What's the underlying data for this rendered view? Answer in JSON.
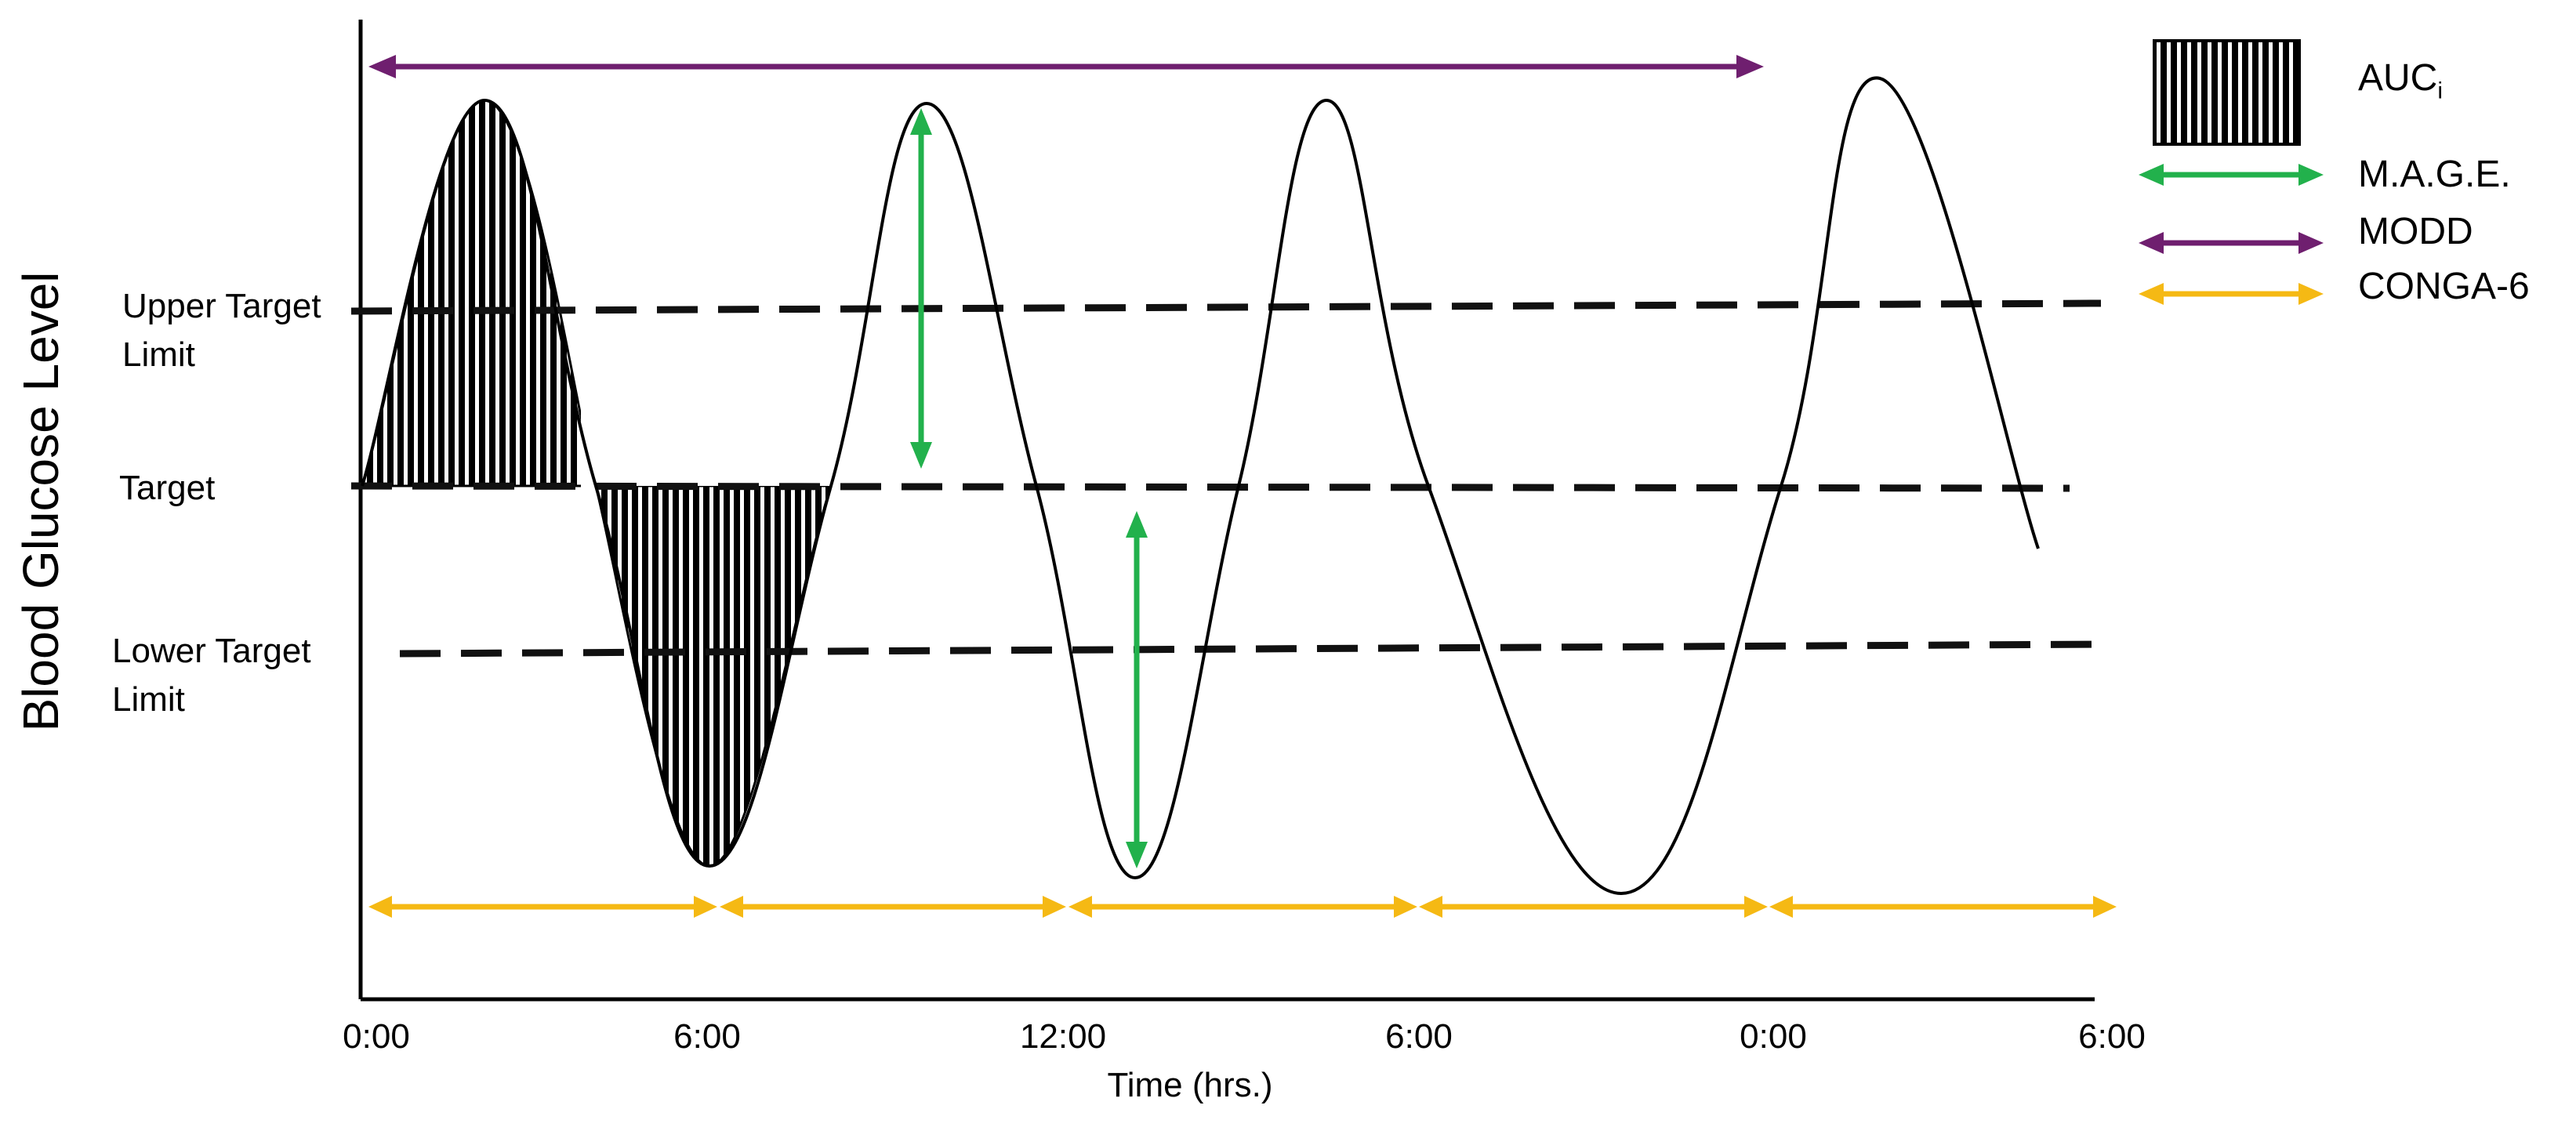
{
  "y_axis_label": "Blood Glucose Level",
  "x_axis_label": "Time (hrs.)",
  "x_ticks": [
    "0:00",
    "6:00",
    "12:00",
    "6:00",
    "0:00",
    "6:00"
  ],
  "reference_lines": {
    "upper_target_limit": "Upper Target\nLimit",
    "target": "Target",
    "lower_target_limit": "Lower Target\nLimit"
  },
  "legend": {
    "auc": {
      "label": "AUC",
      "subscript": "i"
    },
    "mage": {
      "label": "M.A.G.E.",
      "color": "#22b14c"
    },
    "modd": {
      "label": "MODD",
      "color": "#6f1f6f"
    },
    "conga": {
      "label": "CONGA-6",
      "color": "#f5b914"
    }
  }
}
